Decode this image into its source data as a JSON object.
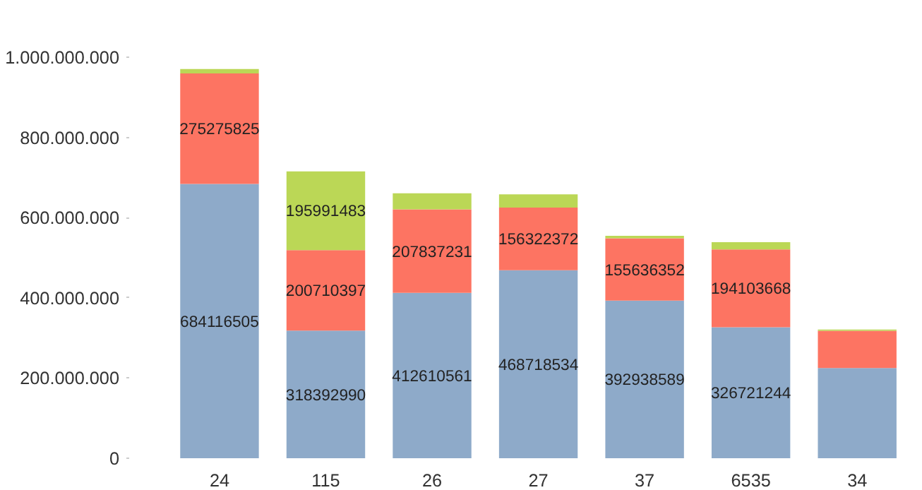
{
  "chart_data": {
    "type": "bar",
    "stacked": true,
    "categories": [
      "24",
      "115",
      "26",
      "27",
      "37",
      "6535",
      "34"
    ],
    "series": [
      {
        "color": "#8eaac9",
        "values": [
          684116505,
          318392990,
          412610561,
          468718534,
          392938589,
          326721244,
          225000000
        ],
        "value_labels": [
          "684116505",
          "318392990",
          "412610561",
          "468718534",
          "392938589",
          "326721244",
          null
        ]
      },
      {
        "color": "#fd7462",
        "values": [
          275275825,
          200710397,
          207837231,
          156322372,
          155636352,
          194103668,
          93000000
        ],
        "value_labels": [
          "275275825",
          "200710397",
          "207837231",
          "156322372",
          "155636352",
          "194103668",
          null
        ]
      },
      {
        "color": "#bbd756",
        "values": [
          11000000,
          195991483,
          40000000,
          33000000,
          6000000,
          18000000,
          3000000
        ],
        "value_labels": [
          null,
          "195991483",
          null,
          null,
          null,
          null,
          null
        ]
      }
    ],
    "ylim": [
      0,
      1000000000
    ],
    "yticks": [
      0,
      {
        "value": 200000000,
        "label": "200.000.000"
      },
      {
        "value": 400000000,
        "label": "400.000.000"
      },
      {
        "value": 600000000,
        "label": "600.000.000"
      },
      {
        "value": 800000000,
        "label": "800.000.000"
      },
      {
        "value": 1000000000,
        "label": "1.000.000.000"
      }
    ],
    "grid": false
  }
}
